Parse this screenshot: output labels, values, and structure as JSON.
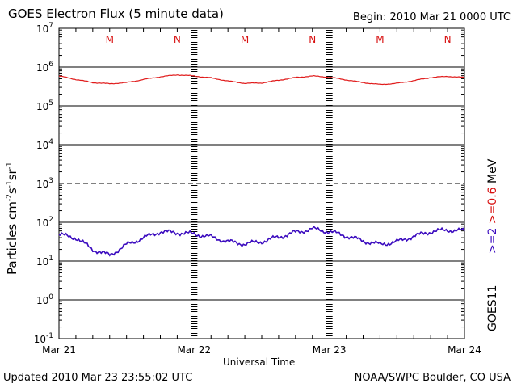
{
  "header": {
    "title": "GOES Electron Flux (5 minute data)",
    "begin": "Begin: 2010 Mar 21 0000 UTC"
  },
  "footer": {
    "updated": "Updated 2010 Mar 23 23:55:02 UTC",
    "credit": "NOAA/SWPC Boulder, CO USA"
  },
  "side": {
    "satellite": "GOES11",
    "legend_high": ">=2",
    "legend_low": ">=0.6",
    "legend_unit": "MeV"
  },
  "chart_data": {
    "type": "line",
    "title": "GOES Electron Flux (5 minute data)",
    "xlabel": "Universal Time",
    "ylabel": "Particles cm-2 s-1 sr-1",
    "yscale": "log",
    "ylim_exp": [
      -1,
      7
    ],
    "y_ticks": [
      {
        "base": "10",
        "exp": "7"
      },
      {
        "base": "10",
        "exp": "6"
      },
      {
        "base": "10",
        "exp": "5"
      },
      {
        "base": "10",
        "exp": "4"
      },
      {
        "base": "10",
        "exp": "3"
      },
      {
        "base": "10",
        "exp": "2"
      },
      {
        "base": "10",
        "exp": "1"
      },
      {
        "base": "10",
        "exp": "0"
      },
      {
        "base": "10",
        "exp": "-1"
      }
    ],
    "dashed_reference_exp": 3,
    "x_range_days": [
      0,
      3
    ],
    "x_ticks": [
      "Mar 21",
      "Mar 22",
      "Mar 23",
      "Mar 24"
    ],
    "markers": [
      {
        "label": "M",
        "day": 0.375
      },
      {
        "label": "N",
        "day": 0.875
      },
      {
        "label": "M",
        "day": 1.375
      },
      {
        "label": "N",
        "day": 1.875
      },
      {
        "label": "M",
        "day": 2.375
      },
      {
        "label": "N",
        "day": 2.875
      }
    ],
    "series": [
      {
        "name": ">=0.6 MeV",
        "color": "#e01a1a",
        "x_days": [
          0,
          0.125,
          0.25,
          0.375,
          0.5,
          0.625,
          0.75,
          0.875,
          1.0,
          1.125,
          1.25,
          1.375,
          1.5,
          1.625,
          1.75,
          1.875,
          2.0,
          2.125,
          2.25,
          2.375,
          2.5,
          2.625,
          2.75,
          2.875,
          3.0
        ],
        "log10_values": [
          5.77,
          5.68,
          5.6,
          5.57,
          5.6,
          5.68,
          5.75,
          5.8,
          5.77,
          5.72,
          5.64,
          5.58,
          5.59,
          5.66,
          5.73,
          5.77,
          5.74,
          5.67,
          5.6,
          5.55,
          5.58,
          5.65,
          5.73,
          5.76,
          5.73
        ]
      },
      {
        "name": ">=2 MeV",
        "color": "#3b0bbf",
        "x_days": [
          0,
          0.125,
          0.25,
          0.375,
          0.5,
          0.625,
          0.75,
          0.875,
          1.0,
          1.125,
          1.25,
          1.375,
          1.5,
          1.625,
          1.75,
          1.875,
          2.0,
          2.125,
          2.25,
          2.375,
          2.5,
          2.625,
          2.75,
          2.875,
          3.0
        ],
        "log10_values": [
          1.68,
          1.6,
          1.3,
          1.15,
          1.42,
          1.6,
          1.76,
          1.73,
          1.7,
          1.62,
          1.5,
          1.44,
          1.5,
          1.62,
          1.74,
          1.83,
          1.76,
          1.65,
          1.52,
          1.43,
          1.5,
          1.64,
          1.76,
          1.8,
          1.78
        ]
      }
    ]
  }
}
